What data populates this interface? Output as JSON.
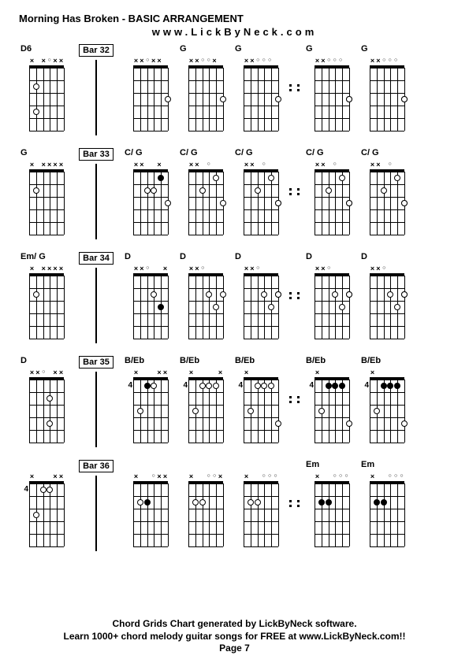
{
  "title": "Morning Has Broken - BASIC ARRANGEMENT",
  "subtitle": "www.LickByNeck.com",
  "footer_line1": "Chord Grids Chart generated by LickByNeck software.",
  "footer_line2": "Learn 1000+ chord melody guitar songs for FREE at www.LickByNeck.com!!",
  "footer_page": "Page 7",
  "grid": {
    "strings": 6,
    "frets": 5,
    "string_spacing": 8.8,
    "fret_spacing": 16
  },
  "colors": {
    "bg": "#ffffff",
    "fg": "#000000"
  },
  "rows": [
    {
      "left": {
        "label": "D6",
        "top": [
          "x",
          " ",
          "x",
          "o",
          "x",
          "x"
        ],
        "pos": "",
        "dots": [
          {
            "s": 2,
            "f": 2,
            "fill": false
          },
          {
            "s": 2,
            "f": 4,
            "fill": false
          }
        ]
      },
      "bar": "Bar 32",
      "chords": [
        {
          "label": "",
          "top": [
            "x",
            "x",
            "o",
            "x",
            "x",
            " "
          ],
          "pos": "",
          "dots": [
            {
              "s": 6,
              "f": 3,
              "fill": false
            }
          ]
        },
        {
          "label": "G",
          "top": [
            "x",
            "x",
            "o",
            "o",
            "x",
            " "
          ],
          "pos": "",
          "dots": [
            {
              "s": 6,
              "f": 3,
              "fill": false
            }
          ]
        },
        {
          "label": "G",
          "top": [
            "x",
            "x",
            "o",
            "o",
            "o",
            " "
          ],
          "pos": "",
          "dots": [
            {
              "s": 6,
              "f": 3,
              "fill": false
            }
          ]
        }
      ],
      "sep_after": 2,
      "chords2": [
        {
          "label": "G",
          "top": [
            "x",
            "x",
            "o",
            "o",
            "o",
            " "
          ],
          "pos": "",
          "dots": [
            {
              "s": 6,
              "f": 3,
              "fill": true
            },
            {
              "s": 6,
              "f": 3,
              "fill": false
            }
          ]
        },
        {
          "label": "G",
          "top": [
            "x",
            "x",
            "o",
            "o",
            "o",
            " "
          ],
          "pos": "",
          "dots": [
            {
              "s": 6,
              "f": 3,
              "fill": true
            },
            {
              "s": 6,
              "f": 3,
              "fill": false
            }
          ]
        }
      ]
    },
    {
      "left": {
        "label": "G",
        "top": [
          "x",
          " ",
          "x",
          "x",
          "x",
          "x"
        ],
        "pos": "",
        "dots": [
          {
            "s": 2,
            "f": 2,
            "fill": false
          }
        ]
      },
      "bar": "Bar 33",
      "chords": [
        {
          "label": "C/ G",
          "top": [
            "x",
            "x",
            " ",
            " ",
            "x",
            " "
          ],
          "pos": "",
          "dots": [
            {
              "s": 3,
              "f": 2,
              "fill": false
            },
            {
              "s": 4,
              "f": 2,
              "fill": false
            },
            {
              "s": 5,
              "f": 1,
              "fill": true
            },
            {
              "s": 6,
              "f": 3,
              "fill": false
            }
          ]
        },
        {
          "label": "C/ G",
          "top": [
            "x",
            "x",
            " ",
            "o",
            " ",
            " "
          ],
          "pos": "",
          "dots": [
            {
              "s": 3,
              "f": 2,
              "fill": false
            },
            {
              "s": 5,
              "f": 1,
              "fill": false
            },
            {
              "s": 6,
              "f": 3,
              "fill": false
            }
          ]
        },
        {
          "label": "C/ G",
          "top": [
            "x",
            "x",
            " ",
            "o",
            " ",
            " "
          ],
          "pos": "",
          "dots": [
            {
              "s": 3,
              "f": 2,
              "fill": false
            },
            {
              "s": 5,
              "f": 1,
              "fill": false
            },
            {
              "s": 6,
              "f": 3,
              "fill": true
            },
            {
              "s": 6,
              "f": 3,
              "fill": false
            }
          ]
        }
      ],
      "sep_after": 2,
      "chords2": [
        {
          "label": "C/ G",
          "top": [
            "x",
            "x",
            " ",
            "o",
            " ",
            " "
          ],
          "pos": "",
          "dots": [
            {
              "s": 3,
              "f": 2,
              "fill": false
            },
            {
              "s": 5,
              "f": 1,
              "fill": false
            },
            {
              "s": 6,
              "f": 3,
              "fill": true
            },
            {
              "s": 6,
              "f": 3,
              "fill": false
            }
          ]
        },
        {
          "label": "C/ G",
          "top": [
            "x",
            "x",
            " ",
            "o",
            " ",
            " "
          ],
          "pos": "",
          "dots": [
            {
              "s": 3,
              "f": 2,
              "fill": false
            },
            {
              "s": 5,
              "f": 1,
              "fill": false
            },
            {
              "s": 6,
              "f": 3,
              "fill": true
            },
            {
              "s": 6,
              "f": 3,
              "fill": false
            }
          ]
        }
      ]
    },
    {
      "left": {
        "label": "Em/ G",
        "top": [
          "x",
          " ",
          "x",
          "x",
          "x",
          "x"
        ],
        "pos": "",
        "dots": [
          {
            "s": 2,
            "f": 2,
            "fill": false
          }
        ]
      },
      "bar": "Bar 34",
      "chords": [
        {
          "label": "D",
          "top": [
            "x",
            "x",
            "o",
            " ",
            " ",
            "x"
          ],
          "pos": "",
          "dots": [
            {
              "s": 4,
              "f": 2,
              "fill": false
            },
            {
              "s": 5,
              "f": 3,
              "fill": true
            }
          ]
        },
        {
          "label": "D",
          "top": [
            "x",
            "x",
            "o",
            " ",
            " ",
            " "
          ],
          "pos": "",
          "dots": [
            {
              "s": 4,
              "f": 2,
              "fill": false
            },
            {
              "s": 5,
              "f": 3,
              "fill": false
            },
            {
              "s": 6,
              "f": 2,
              "fill": false
            }
          ]
        },
        {
          "label": "D",
          "top": [
            "x",
            "x",
            "o",
            " ",
            " ",
            " "
          ],
          "pos": "",
          "dots": [
            {
              "s": 4,
              "f": 2,
              "fill": false
            },
            {
              "s": 5,
              "f": 3,
              "fill": false
            },
            {
              "s": 6,
              "f": 2,
              "fill": true
            },
            {
              "s": 6,
              "f": 2,
              "fill": false
            }
          ]
        }
      ],
      "sep_after": 2,
      "chords2": [
        {
          "label": "D",
          "top": [
            "x",
            "x",
            "o",
            " ",
            " ",
            " "
          ],
          "pos": "",
          "dots": [
            {
              "s": 4,
              "f": 2,
              "fill": false
            },
            {
              "s": 5,
              "f": 3,
              "fill": false
            },
            {
              "s": 6,
              "f": 2,
              "fill": true
            },
            {
              "s": 6,
              "f": 2,
              "fill": false
            }
          ]
        },
        {
          "label": "D",
          "top": [
            "x",
            "x",
            "o",
            " ",
            " ",
            " "
          ],
          "pos": "",
          "dots": [
            {
              "s": 4,
              "f": 2,
              "fill": false
            },
            {
              "s": 5,
              "f": 3,
              "fill": false
            },
            {
              "s": 6,
              "f": 2,
              "fill": true
            },
            {
              "s": 6,
              "f": 2,
              "fill": false
            }
          ]
        }
      ]
    },
    {
      "left": {
        "label": "D",
        "top": [
          "x",
          "x",
          "o",
          " ",
          "x",
          "x"
        ],
        "pos": "",
        "dots": [
          {
            "s": 4,
            "f": 2,
            "fill": false
          },
          {
            "s": 4,
            "f": 4,
            "fill": false
          }
        ]
      },
      "bar": "Bar 35",
      "chords": [
        {
          "label": "B/Eb",
          "top": [
            "x",
            " ",
            " ",
            " ",
            "x",
            "x"
          ],
          "pos": "4",
          "dots": [
            {
              "s": 2,
              "f": 3,
              "fill": false
            },
            {
              "s": 3,
              "f": 1,
              "fill": true
            },
            {
              "s": 4,
              "f": 1,
              "fill": false
            }
          ]
        },
        {
          "label": "B/Eb",
          "top": [
            "x",
            " ",
            " ",
            " ",
            " ",
            "x"
          ],
          "pos": "4",
          "dots": [
            {
              "s": 2,
              "f": 3,
              "fill": false
            },
            {
              "s": 3,
              "f": 1,
              "fill": false
            },
            {
              "s": 4,
              "f": 1,
              "fill": false
            },
            {
              "s": 5,
              "f": 1,
              "fill": false
            }
          ]
        },
        {
          "label": "B/Eb",
          "top": [
            "x",
            " ",
            " ",
            " ",
            " ",
            " "
          ],
          "pos": "4",
          "dots": [
            {
              "s": 2,
              "f": 3,
              "fill": false
            },
            {
              "s": 3,
              "f": 1,
              "fill": false
            },
            {
              "s": 4,
              "f": 1,
              "fill": false
            },
            {
              "s": 5,
              "f": 1,
              "fill": false
            },
            {
              "s": 6,
              "f": 4,
              "fill": false
            }
          ]
        }
      ],
      "sep_after": 2,
      "chords2": [
        {
          "label": "B/Eb",
          "top": [
            "x",
            " ",
            " ",
            " ",
            " ",
            " "
          ],
          "pos": "4",
          "dots": [
            {
              "s": 2,
              "f": 3,
              "fill": false
            },
            {
              "s": 3,
              "f": 1,
              "fill": true
            },
            {
              "s": 4,
              "f": 1,
              "fill": true
            },
            {
              "s": 5,
              "f": 1,
              "fill": true
            },
            {
              "s": 6,
              "f": 4,
              "fill": false
            }
          ]
        },
        {
          "label": "B/Eb",
          "top": [
            "x",
            " ",
            " ",
            " ",
            " ",
            " "
          ],
          "pos": "4",
          "dots": [
            {
              "s": 2,
              "f": 3,
              "fill": false
            },
            {
              "s": 3,
              "f": 1,
              "fill": true
            },
            {
              "s": 4,
              "f": 1,
              "fill": true
            },
            {
              "s": 5,
              "f": 1,
              "fill": true
            },
            {
              "s": 6,
              "f": 4,
              "fill": false
            }
          ]
        }
      ]
    },
    {
      "left": {
        "label": "",
        "top": [
          "x",
          " ",
          " ",
          " ",
          "x",
          "x"
        ],
        "pos": "4",
        "dots": [
          {
            "s": 2,
            "f": 3,
            "fill": false
          },
          {
            "s": 3,
            "f": 1,
            "fill": false
          },
          {
            "s": 4,
            "f": 1,
            "fill": false
          }
        ]
      },
      "bar": "Bar 36",
      "chords": [
        {
          "label": "",
          "top": [
            "x",
            " ",
            " ",
            "o",
            "x",
            "x"
          ],
          "pos": "",
          "dots": [
            {
              "s": 2,
              "f": 2,
              "fill": false
            },
            {
              "s": 3,
              "f": 2,
              "fill": true
            }
          ]
        },
        {
          "label": "",
          "top": [
            "x",
            " ",
            " ",
            "o",
            "o",
            "x"
          ],
          "pos": "",
          "dots": [
            {
              "s": 2,
              "f": 2,
              "fill": false
            },
            {
              "s": 3,
              "f": 2,
              "fill": false
            }
          ]
        },
        {
          "label": "",
          "top": [
            "x",
            " ",
            " ",
            "o",
            "o",
            "o"
          ],
          "pos": "",
          "dots": [
            {
              "s": 2,
              "f": 2,
              "fill": false
            },
            {
              "s": 3,
              "f": 2,
              "fill": false
            }
          ]
        }
      ],
      "sep_after": 2,
      "chords2": [
        {
          "label": "Em",
          "top": [
            "x",
            " ",
            " ",
            "o",
            "o",
            "o"
          ],
          "pos": "",
          "dots": [
            {
              "s": 2,
              "f": 2,
              "fill": true
            },
            {
              "s": 3,
              "f": 2,
              "fill": true
            }
          ]
        },
        {
          "label": "Em",
          "top": [
            "x",
            " ",
            " ",
            "o",
            "o",
            "o"
          ],
          "pos": "",
          "dots": [
            {
              "s": 2,
              "f": 2,
              "fill": true
            },
            {
              "s": 3,
              "f": 2,
              "fill": true
            }
          ]
        }
      ]
    }
  ]
}
